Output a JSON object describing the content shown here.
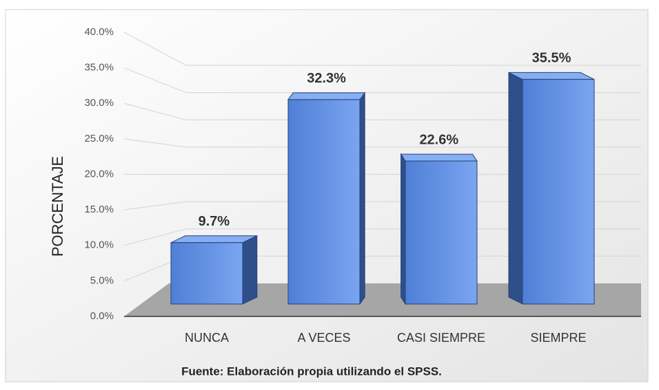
{
  "chart_data": {
    "type": "bar3d",
    "y_label": "PORCENTAJE",
    "source": "Fuente: Elaboración propia utilizando el SPSS.",
    "categories": [
      "NUNCA",
      "A VECES",
      "CASI SIEMPRE",
      "SIEMPRE"
    ],
    "values": [
      9.7,
      32.3,
      22.6,
      35.5
    ],
    "value_labels": [
      "9.7%",
      "32.3%",
      "22.6%",
      "35.5%"
    ],
    "color": "#5b8ee6",
    "ylim": [
      0,
      40
    ],
    "yticks": [
      {
        "value": 0,
        "label": "0.0%"
      },
      {
        "value": 5,
        "label": "5.0%"
      },
      {
        "value": 10,
        "label": "10.0%"
      },
      {
        "value": 15,
        "label": "15.0%"
      },
      {
        "value": 20,
        "label": "20.0%"
      },
      {
        "value": 25,
        "label": "25.0%"
      },
      {
        "value": 30,
        "label": "30.0%"
      },
      {
        "value": 35,
        "label": "35.0%"
      },
      {
        "value": 40,
        "label": "40.0%"
      }
    ],
    "grid": true
  }
}
